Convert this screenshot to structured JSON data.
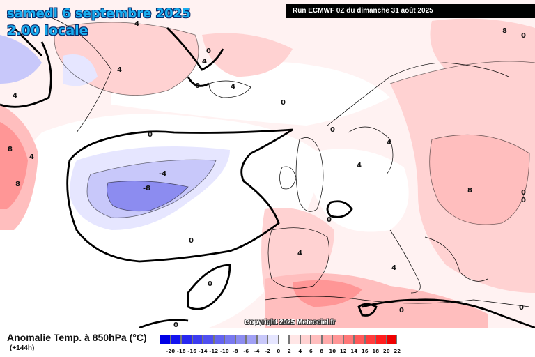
{
  "header": {
    "date_line": "samedi 6 septembre 2025",
    "time_line": "2.00 locale",
    "run_info": "Run ECMWF 0Z du dimanche 31 août 2025"
  },
  "footer": {
    "variable_title": "Anomalie Temp. à 850hPa (°C)",
    "lead_time": "(+144h)",
    "copyright": "Copyright 2025 Meteociel.fr"
  },
  "legend": {
    "ticks": [
      "-20",
      "-18",
      "-16",
      "-14",
      "-12",
      "-10",
      "-8",
      "-6",
      "-4",
      "-2",
      "0",
      "2",
      "4",
      "6",
      "8",
      "10",
      "12",
      "14",
      "16",
      "18",
      "20",
      "22"
    ],
    "colors": [
      "#0000e6",
      "#1414f0",
      "#2828f0",
      "#3c3cf0",
      "#5050f0",
      "#6464f0",
      "#7878f0",
      "#8c8cf0",
      "#a0a0f5",
      "#c8c8fa",
      "#e6e6ff",
      "#ffffff",
      "#ffe6e6",
      "#ffd2d2",
      "#ffbebe",
      "#ffaaaa",
      "#ff9696",
      "#ff7878",
      "#ff5a5a",
      "#ff3c3c",
      "#ff1e1e",
      "#f00000"
    ]
  },
  "map": {
    "contour_labels": [
      {
        "text": "4"
      },
      {
        "text": "0"
      },
      {
        "text": "4"
      },
      {
        "text": "4"
      },
      {
        "text": "0"
      },
      {
        "text": "4"
      },
      {
        "text": "0"
      },
      {
        "text": "0"
      },
      {
        "text": "8"
      },
      {
        "text": "8"
      },
      {
        "text": "4"
      },
      {
        "text": "0"
      },
      {
        "text": "-4"
      },
      {
        "text": "-8"
      },
      {
        "text": "0"
      },
      {
        "text": "0"
      },
      {
        "text": "0"
      },
      {
        "text": "0"
      },
      {
        "text": "4"
      },
      {
        "text": "4"
      },
      {
        "text": "4"
      },
      {
        "text": "8"
      },
      {
        "text": "0"
      },
      {
        "text": "0"
      },
      {
        "text": "0"
      },
      {
        "text": "8"
      },
      {
        "text": "4"
      },
      {
        "text": "0"
      },
      {
        "text": "0"
      },
      {
        "text": "4"
      }
    ],
    "colors": {
      "ocean_base": "#fff0f0",
      "warm_light": "#ffd2d2",
      "warm_medium": "#ffbebe",
      "warm_strong": "#ff9696",
      "cold_light": "#e6e6ff",
      "cold_medium": "#c8c8fa",
      "cold_strong": "#8c8cf0",
      "contour": "#000000",
      "coast": "#000000"
    }
  }
}
